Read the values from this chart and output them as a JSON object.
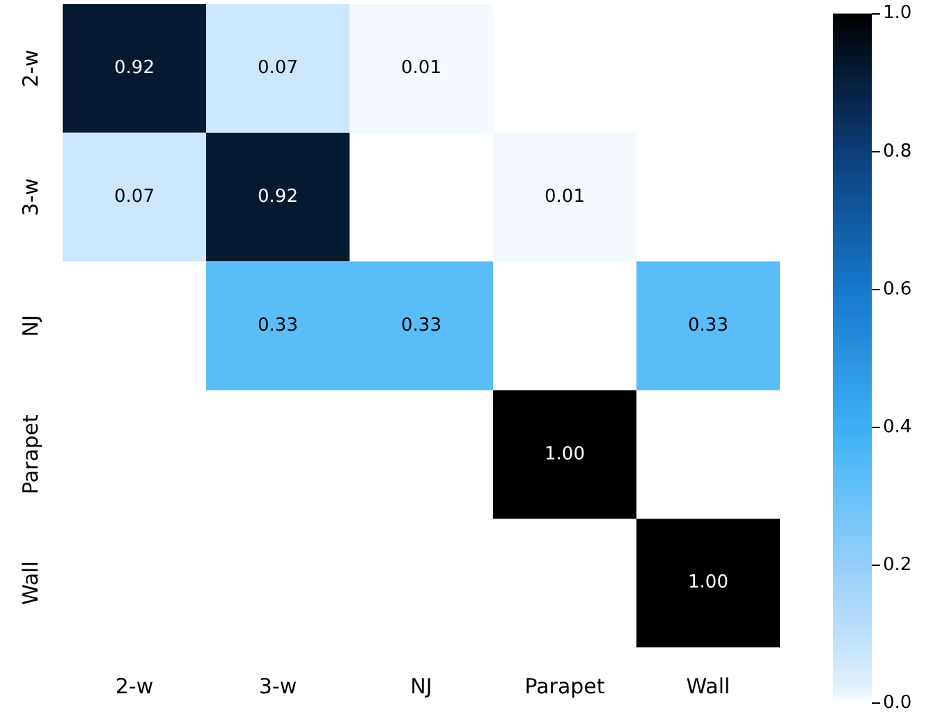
{
  "chart_data": {
    "type": "heatmap",
    "categories": [
      "2-w",
      "3-w",
      "NJ",
      "Parapet",
      "Wall"
    ],
    "y_categories": [
      "2-w",
      "3-w",
      "NJ",
      "Parapet",
      "Wall"
    ],
    "cells": [
      [
        0.92,
        0.07,
        0.01,
        null,
        null
      ],
      [
        0.07,
        0.92,
        null,
        0.01,
        null
      ],
      [
        null,
        0.33,
        0.33,
        null,
        0.33
      ],
      [
        null,
        null,
        null,
        1.0,
        null
      ],
      [
        null,
        null,
        null,
        null,
        1.0
      ]
    ],
    "cell_labels": [
      [
        "0.92",
        "0.07",
        "0.01",
        null,
        null
      ],
      [
        "0.07",
        "0.92",
        null,
        "0.01",
        null
      ],
      [
        null,
        "0.33",
        "0.33",
        null,
        "0.33"
      ],
      [
        null,
        null,
        null,
        "1.00",
        null
      ],
      [
        null,
        null,
        null,
        null,
        "1.00"
      ]
    ],
    "clim": [
      0,
      1
    ],
    "cticks": [
      {
        "value": 0,
        "label": "0.0"
      },
      {
        "value": 0.2,
        "label": "0.2"
      },
      {
        "value": 0.4,
        "label": "0.4"
      },
      {
        "value": 0.6,
        "label": "0.6"
      },
      {
        "value": 0.8,
        "label": "0.8"
      },
      {
        "value": 1,
        "label": "1.0"
      }
    ]
  }
}
